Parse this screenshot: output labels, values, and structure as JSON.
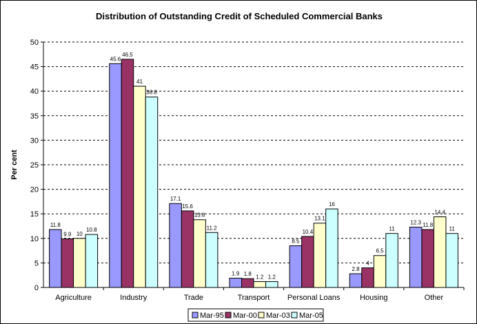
{
  "chart_data": {
    "type": "bar",
    "title": "Distribution of Outstanding Credit of Scheduled Commercial Banks",
    "xlabel": "",
    "ylabel": "Per cent",
    "ylim": [
      0,
      50
    ],
    "yticks": [
      0,
      5,
      10,
      15,
      20,
      25,
      30,
      35,
      40,
      45,
      50
    ],
    "grid": "horizontal dashed",
    "legend_position": "bottom",
    "categories": [
      "Agriculture",
      "Industry",
      "Trade",
      "Transport",
      "Personal Loans",
      "Housing",
      "Other"
    ],
    "series": [
      {
        "name": "Mar-95",
        "color": "#9999FF",
        "values": [
          11.8,
          45.6,
          17.1,
          1.9,
          8.5,
          2.8,
          12.3
        ],
        "labels": [
          "11.8",
          "45.6",
          "17.1",
          "1.9",
          "8.5",
          "2.8",
          "12.3"
        ]
      },
      {
        "name": "Mar-00",
        "color": "#993366",
        "values": [
          9.9,
          46.5,
          15.6,
          1.8,
          10.4,
          4,
          11.8
        ],
        "labels": [
          "9.9",
          "46.5",
          "15.6",
          "1.8",
          "10.4",
          "4",
          "11.8"
        ]
      },
      {
        "name": "Mar-03",
        "color": "#FFFFCC",
        "values": [
          10,
          41,
          13.8,
          1.2,
          13.1,
          6.5,
          14.4
        ],
        "labels": [
          "10",
          "41",
          "13.8",
          "1.2",
          "13.1",
          "6.5",
          "14.4"
        ]
      },
      {
        "name": "Mar-05",
        "color": "#CCFFFF",
        "values": [
          10.8,
          38.8,
          11.2,
          1.2,
          16,
          11,
          11
        ],
        "labels": [
          "10.8",
          "38.8",
          "11.2",
          "1.2",
          "16",
          "11",
          "11"
        ]
      }
    ]
  }
}
